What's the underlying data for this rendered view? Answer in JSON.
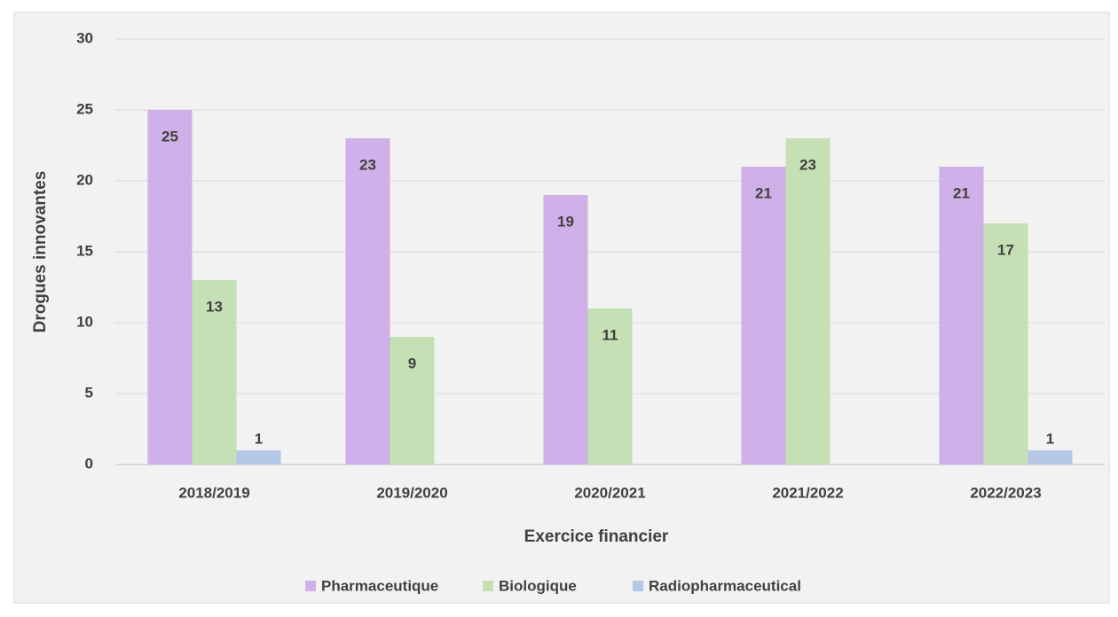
{
  "chart_data": {
    "type": "bar",
    "categories": [
      "2018/2019",
      "2019/2020",
      "2020/2021",
      "2021/2022",
      "2022/2023"
    ],
    "series": [
      {
        "name": "Pharmaceutique",
        "color": "#cfb0e8",
        "values": [
          25,
          23,
          19,
          21,
          21
        ]
      },
      {
        "name": "Biologique",
        "color": "#c5e0b4",
        "values": [
          13,
          9,
          11,
          23,
          17
        ]
      },
      {
        "name": "Radiopharmaceutical",
        "color": "#b4c7e7",
        "values": [
          1,
          null,
          null,
          null,
          1
        ]
      }
    ],
    "xlabel": "Exercice financier",
    "ylabel": "Drogues innovantes",
    "ylim": [
      0,
      30
    ],
    "yticks": [
      0,
      5,
      10,
      15,
      20,
      25,
      30
    ],
    "grid": true,
    "legend": "bottom"
  }
}
